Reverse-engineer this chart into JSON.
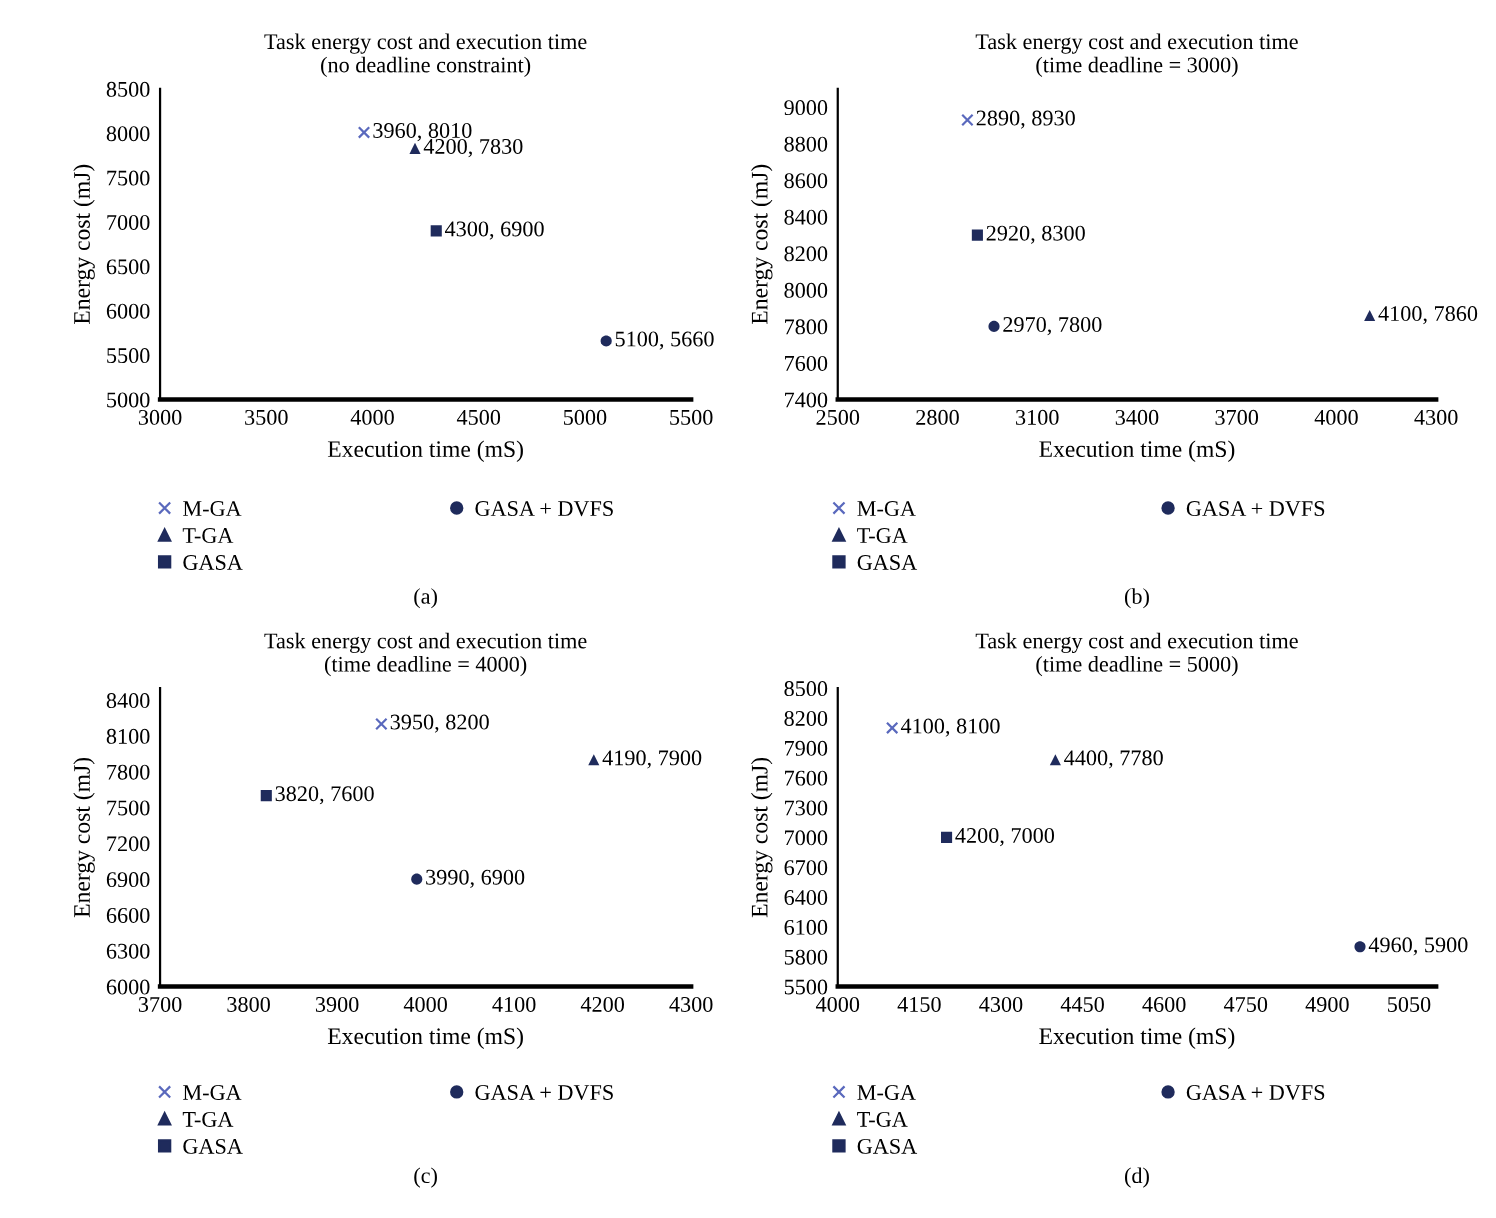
{
  "chart_data": [
    {
      "type": "scatter",
      "title": "Task energy cost and execution time\n(no deadline constraint)",
      "xlabel": "Execution time (mS)",
      "ylabel": "Energy cost (mJ)",
      "xlim": [
        3000,
        5500
      ],
      "xticks": [
        3000,
        3500,
        4000,
        4500,
        5000,
        5500
      ],
      "ylim": [
        5000,
        8500
      ],
      "yticks": [
        5000,
        5500,
        6000,
        6500,
        7000,
        7500,
        8000,
        8500
      ],
      "legend": "bottom",
      "grid": false,
      "annotations": [
        "(a)"
      ],
      "series": [
        {
          "name": "M-GA",
          "color": "#5a69bd",
          "marker": "cross",
          "x": [
            3960
          ],
          "values": [
            8010
          ],
          "value_labels": [
            "3960, 8010"
          ]
        },
        {
          "name": "T-GA",
          "color": "#1f2b5c",
          "marker": "triangle",
          "x": [
            4200
          ],
          "values": [
            7830
          ],
          "value_labels": [
            "4200, 7830"
          ]
        },
        {
          "name": "GASA",
          "color": "#1f2b5c",
          "marker": "square",
          "x": [
            4300
          ],
          "values": [
            6900
          ],
          "value_labels": [
            "4300, 6900"
          ]
        },
        {
          "name": "GASA + DVFS",
          "color": "#1f2b5c",
          "marker": "circle",
          "x": [
            5100
          ],
          "values": [
            5660
          ],
          "value_labels": [
            "5100, 5660"
          ]
        }
      ]
    },
    {
      "type": "scatter",
      "title": "Task energy cost and execution time\n(time deadline = 3000)",
      "xlabel": "Execution time (mS)",
      "ylabel": "Energy cost (mJ)",
      "xlim": [
        2500,
        4300
      ],
      "xticks": [
        2500,
        2800,
        3100,
        3400,
        3700,
        4000,
        4300
      ],
      "ylim": [
        7400,
        9100
      ],
      "yticks": [
        7400,
        7600,
        7800,
        8000,
        8200,
        8400,
        8600,
        8800,
        9000
      ],
      "legend": "bottom",
      "grid": false,
      "annotations": [
        "(b)"
      ],
      "series": [
        {
          "name": "M-GA",
          "color": "#5a69bd",
          "marker": "cross",
          "x": [
            2890
          ],
          "values": [
            8930
          ],
          "value_labels": [
            "2890, 8930"
          ]
        },
        {
          "name": "T-GA",
          "color": "#1f2b5c",
          "marker": "triangle",
          "x": [
            4100
          ],
          "values": [
            7860
          ],
          "value_labels": [
            "4100, 7860"
          ]
        },
        {
          "name": "GASA",
          "color": "#1f2b5c",
          "marker": "square",
          "x": [
            2920
          ],
          "values": [
            8300
          ],
          "value_labels": [
            "2920, 8300"
          ]
        },
        {
          "name": "GASA + DVFS",
          "color": "#1f2b5c",
          "marker": "circle",
          "x": [
            2970
          ],
          "values": [
            7800
          ],
          "value_labels": [
            "2970, 7800"
          ]
        }
      ]
    },
    {
      "type": "scatter",
      "title": "Task energy cost and execution time\n(time deadline = 4000)",
      "xlabel": "Execution time (mS)",
      "ylabel": "Energy cost (mJ)",
      "xlim": [
        3700,
        4300
      ],
      "xticks": [
        3700,
        3800,
        3900,
        4000,
        4100,
        4200,
        4300
      ],
      "ylim": [
        6000,
        8500
      ],
      "yticks": [
        6000,
        6300,
        6600,
        6900,
        7200,
        7500,
        7800,
        8100,
        8400
      ],
      "legend": "bottom",
      "grid": false,
      "annotations": [
        "(c)"
      ],
      "series": [
        {
          "name": "M-GA",
          "color": "#5a69bd",
          "marker": "cross",
          "x": [
            3950
          ],
          "values": [
            8200
          ],
          "value_labels": [
            "3950, 8200"
          ]
        },
        {
          "name": "T-GA",
          "color": "#1f2b5c",
          "marker": "triangle",
          "x": [
            4190
          ],
          "values": [
            7900
          ],
          "value_labels": [
            "4190, 7900"
          ]
        },
        {
          "name": "GASA",
          "color": "#1f2b5c",
          "marker": "square",
          "x": [
            3820
          ],
          "values": [
            7600
          ],
          "value_labels": [
            "3820, 7600"
          ]
        },
        {
          "name": "GASA + DVFS",
          "color": "#1f2b5c",
          "marker": "circle",
          "x": [
            3990
          ],
          "values": [
            6900
          ],
          "value_labels": [
            "3990, 6900"
          ]
        }
      ]
    },
    {
      "type": "scatter",
      "title": "Task energy cost and execution time\n(time deadline = 5000)",
      "xlabel": "Execution time (mS)",
      "ylabel": "Energy cost (mJ)",
      "xlim": [
        4000,
        5100
      ],
      "xticks": [
        4000,
        4150,
        4300,
        4450,
        4600,
        4750,
        4900,
        5050
      ],
      "ylim": [
        5500,
        8500
      ],
      "yticks": [
        5500,
        5800,
        6100,
        6400,
        6700,
        7000,
        7300,
        7600,
        7900,
        8200,
        8500
      ],
      "legend": "bottom",
      "grid": false,
      "annotations": [
        "(d)"
      ],
      "series": [
        {
          "name": "M-GA",
          "color": "#5a69bd",
          "marker": "cross",
          "x": [
            4100
          ],
          "values": [
            8100
          ],
          "value_labels": [
            "4100, 8100"
          ]
        },
        {
          "name": "T-GA",
          "color": "#1f2b5c",
          "marker": "triangle",
          "x": [
            4400
          ],
          "values": [
            7780
          ],
          "value_labels": [
            "4400, 7780"
          ]
        },
        {
          "name": "GASA",
          "color": "#1f2b5c",
          "marker": "square",
          "x": [
            4200
          ],
          "values": [
            7000
          ],
          "value_labels": [
            "4200, 7000"
          ]
        },
        {
          "name": "GASA + DVFS",
          "color": "#1f2b5c",
          "marker": "circle",
          "x": [
            4960
          ],
          "values": [
            5900
          ],
          "value_labels": [
            "4960, 5900"
          ]
        }
      ]
    }
  ]
}
